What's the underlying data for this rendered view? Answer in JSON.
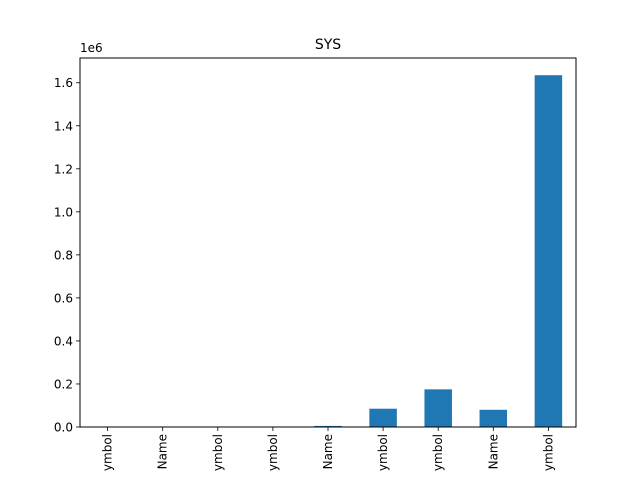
{
  "chart_data": {
    "type": "bar",
    "title": "SYS",
    "xlabel": "",
    "ylabel": "",
    "y_offset_label": "1e6",
    "categories": [
      "ymbol",
      "Name",
      "ymbol",
      "ymbol",
      "Name",
      "ymbol",
      "ymbol",
      "Name",
      "ymbol"
    ],
    "values": [
      0,
      0,
      0,
      0,
      5000,
      85000,
      175000,
      80000,
      1635000
    ],
    "ylim": [
      0,
      1715000
    ],
    "yticks": [
      0,
      200000,
      400000,
      600000,
      800000,
      1000000,
      1200000,
      1400000,
      1600000
    ],
    "ytick_labels": [
      "0.0",
      "0.2",
      "0.4",
      "0.6",
      "0.8",
      "1.0",
      "1.2",
      "1.4",
      "1.6"
    ],
    "bar_color": "#1f77b4",
    "grid": false,
    "legend": "none"
  }
}
